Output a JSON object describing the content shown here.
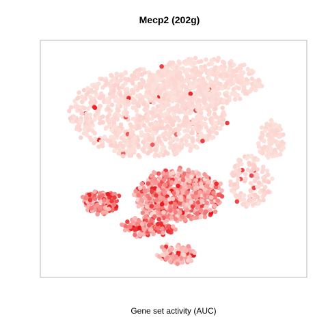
{
  "chart_data": {
    "type": "scatter",
    "title": "Mecp2 (202g)",
    "xlabel": "Gene set activity (AUC)",
    "ylabel": "",
    "axes_visible": false,
    "grid": false,
    "legend": "none",
    "xlim": [
      0,
      100
    ],
    "ylim": [
      0,
      100
    ],
    "color_scale": {
      "low": "#fde2dc",
      "high": "#e8141a",
      "encodes": "AUC"
    },
    "regions": [
      {
        "id": "upper-cloud",
        "cx": 40,
        "cy": 70,
        "rx": 30,
        "ry": 19,
        "n": 1050,
        "level": [
          0.0,
          0.08
        ],
        "hot": 0.02
      },
      {
        "id": "upper-right-cloud",
        "cx": 62,
        "cy": 84,
        "rx": 22,
        "ry": 10,
        "n": 450,
        "level": [
          0.0,
          0.06
        ],
        "hot": 0.01
      },
      {
        "id": "right-lobe",
        "cx": 88,
        "cy": 58,
        "rx": 5,
        "ry": 8,
        "n": 110,
        "level": [
          0.0,
          0.06
        ],
        "hot": 0.0
      },
      {
        "id": "right-arc",
        "cx": 80,
        "cy": 40,
        "rx": 8,
        "ry": 12,
        "n": 140,
        "level": [
          0.0,
          0.1
        ],
        "hot": 0.03
      },
      {
        "id": "central-cluster",
        "cx": 52,
        "cy": 34,
        "rx": 17,
        "ry": 11,
        "n": 650,
        "level": [
          0.05,
          0.55
        ],
        "hot": 0.18
      },
      {
        "id": "left-lower-cluster",
        "cx": 22,
        "cy": 31,
        "rx": 7,
        "ry": 5,
        "n": 120,
        "level": [
          0.1,
          0.6
        ],
        "hot": 0.3
      },
      {
        "id": "bottom-band",
        "cx": 40,
        "cy": 20,
        "rx": 10,
        "ry": 4,
        "n": 120,
        "level": [
          0.15,
          0.6
        ],
        "hot": 0.3
      },
      {
        "id": "bottom-tail",
        "cx": 51,
        "cy": 8,
        "rx": 7,
        "ry": 4,
        "n": 90,
        "level": [
          0.05,
          0.4
        ],
        "hot": 0.1
      }
    ]
  }
}
